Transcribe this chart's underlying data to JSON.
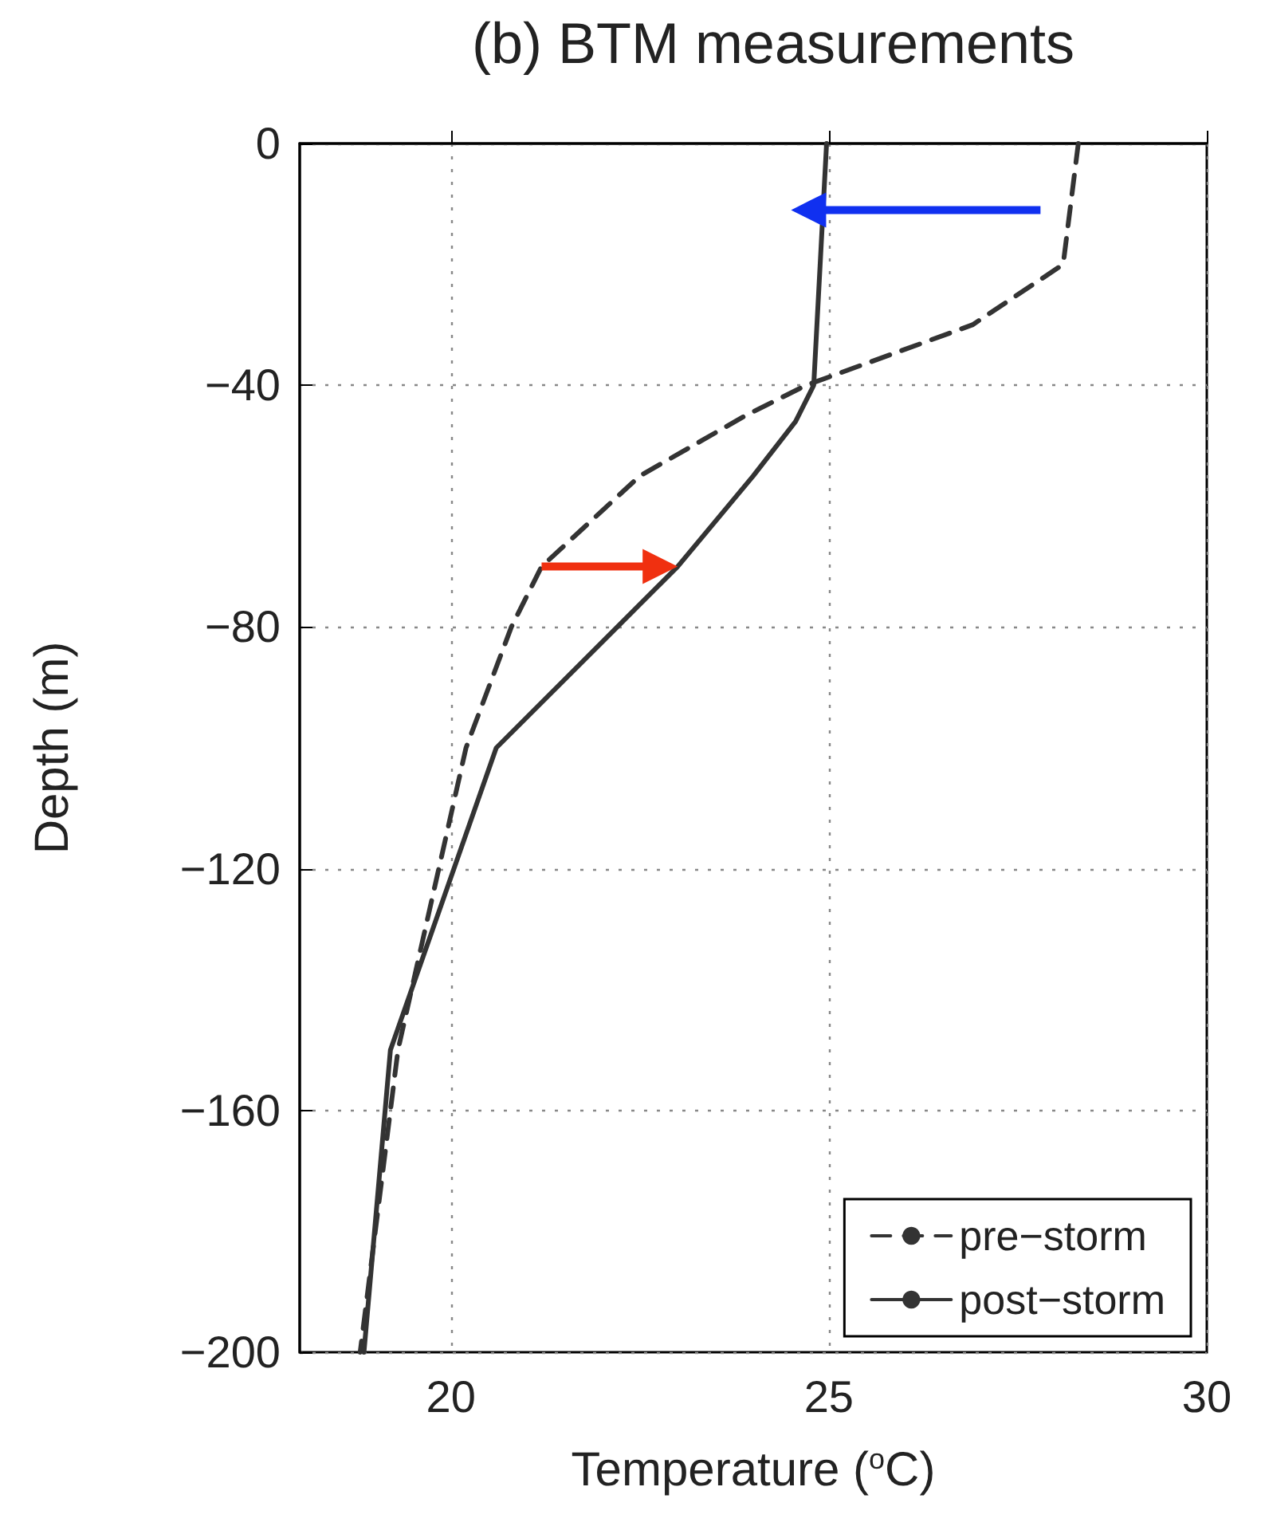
{
  "chart_data": {
    "type": "line",
    "title": "(b) BTM measurements",
    "xlabel": "Temperature ($^{o}$C)",
    "ylabel": "Depth (m)",
    "xlim": [
      18,
      30
    ],
    "xticks": [
      20,
      25,
      30
    ],
    "ylim": [
      -200,
      0
    ],
    "yticks": [
      -200,
      -160,
      -120,
      -80,
      -40,
      0
    ],
    "grid": true,
    "legend": "bottom right",
    "marker": "none",
    "series": [
      {
        "name": "pre−storm",
        "color": "#333333",
        "line_style": "dashed",
        "x": [
          28.3,
          28.1,
          26.9,
          24.7,
          23.9,
          22.5,
          21.2,
          20.8,
          20.2,
          19.3,
          18.8
        ],
        "values": [
          0,
          -20,
          -30,
          -40,
          -45,
          -55,
          -70,
          -80,
          -100,
          -150,
          -200
        ]
      },
      {
        "name": "post−storm",
        "color": "#333333",
        "line_style": "solid",
        "x": [
          24.97,
          24.8,
          24.56,
          24.0,
          23.0,
          20.6,
          19.2,
          18.85
        ],
        "values": [
          0,
          -40,
          -46,
          -55,
          -70,
          -100,
          -150,
          -200
        ]
      }
    ]
  }
}
